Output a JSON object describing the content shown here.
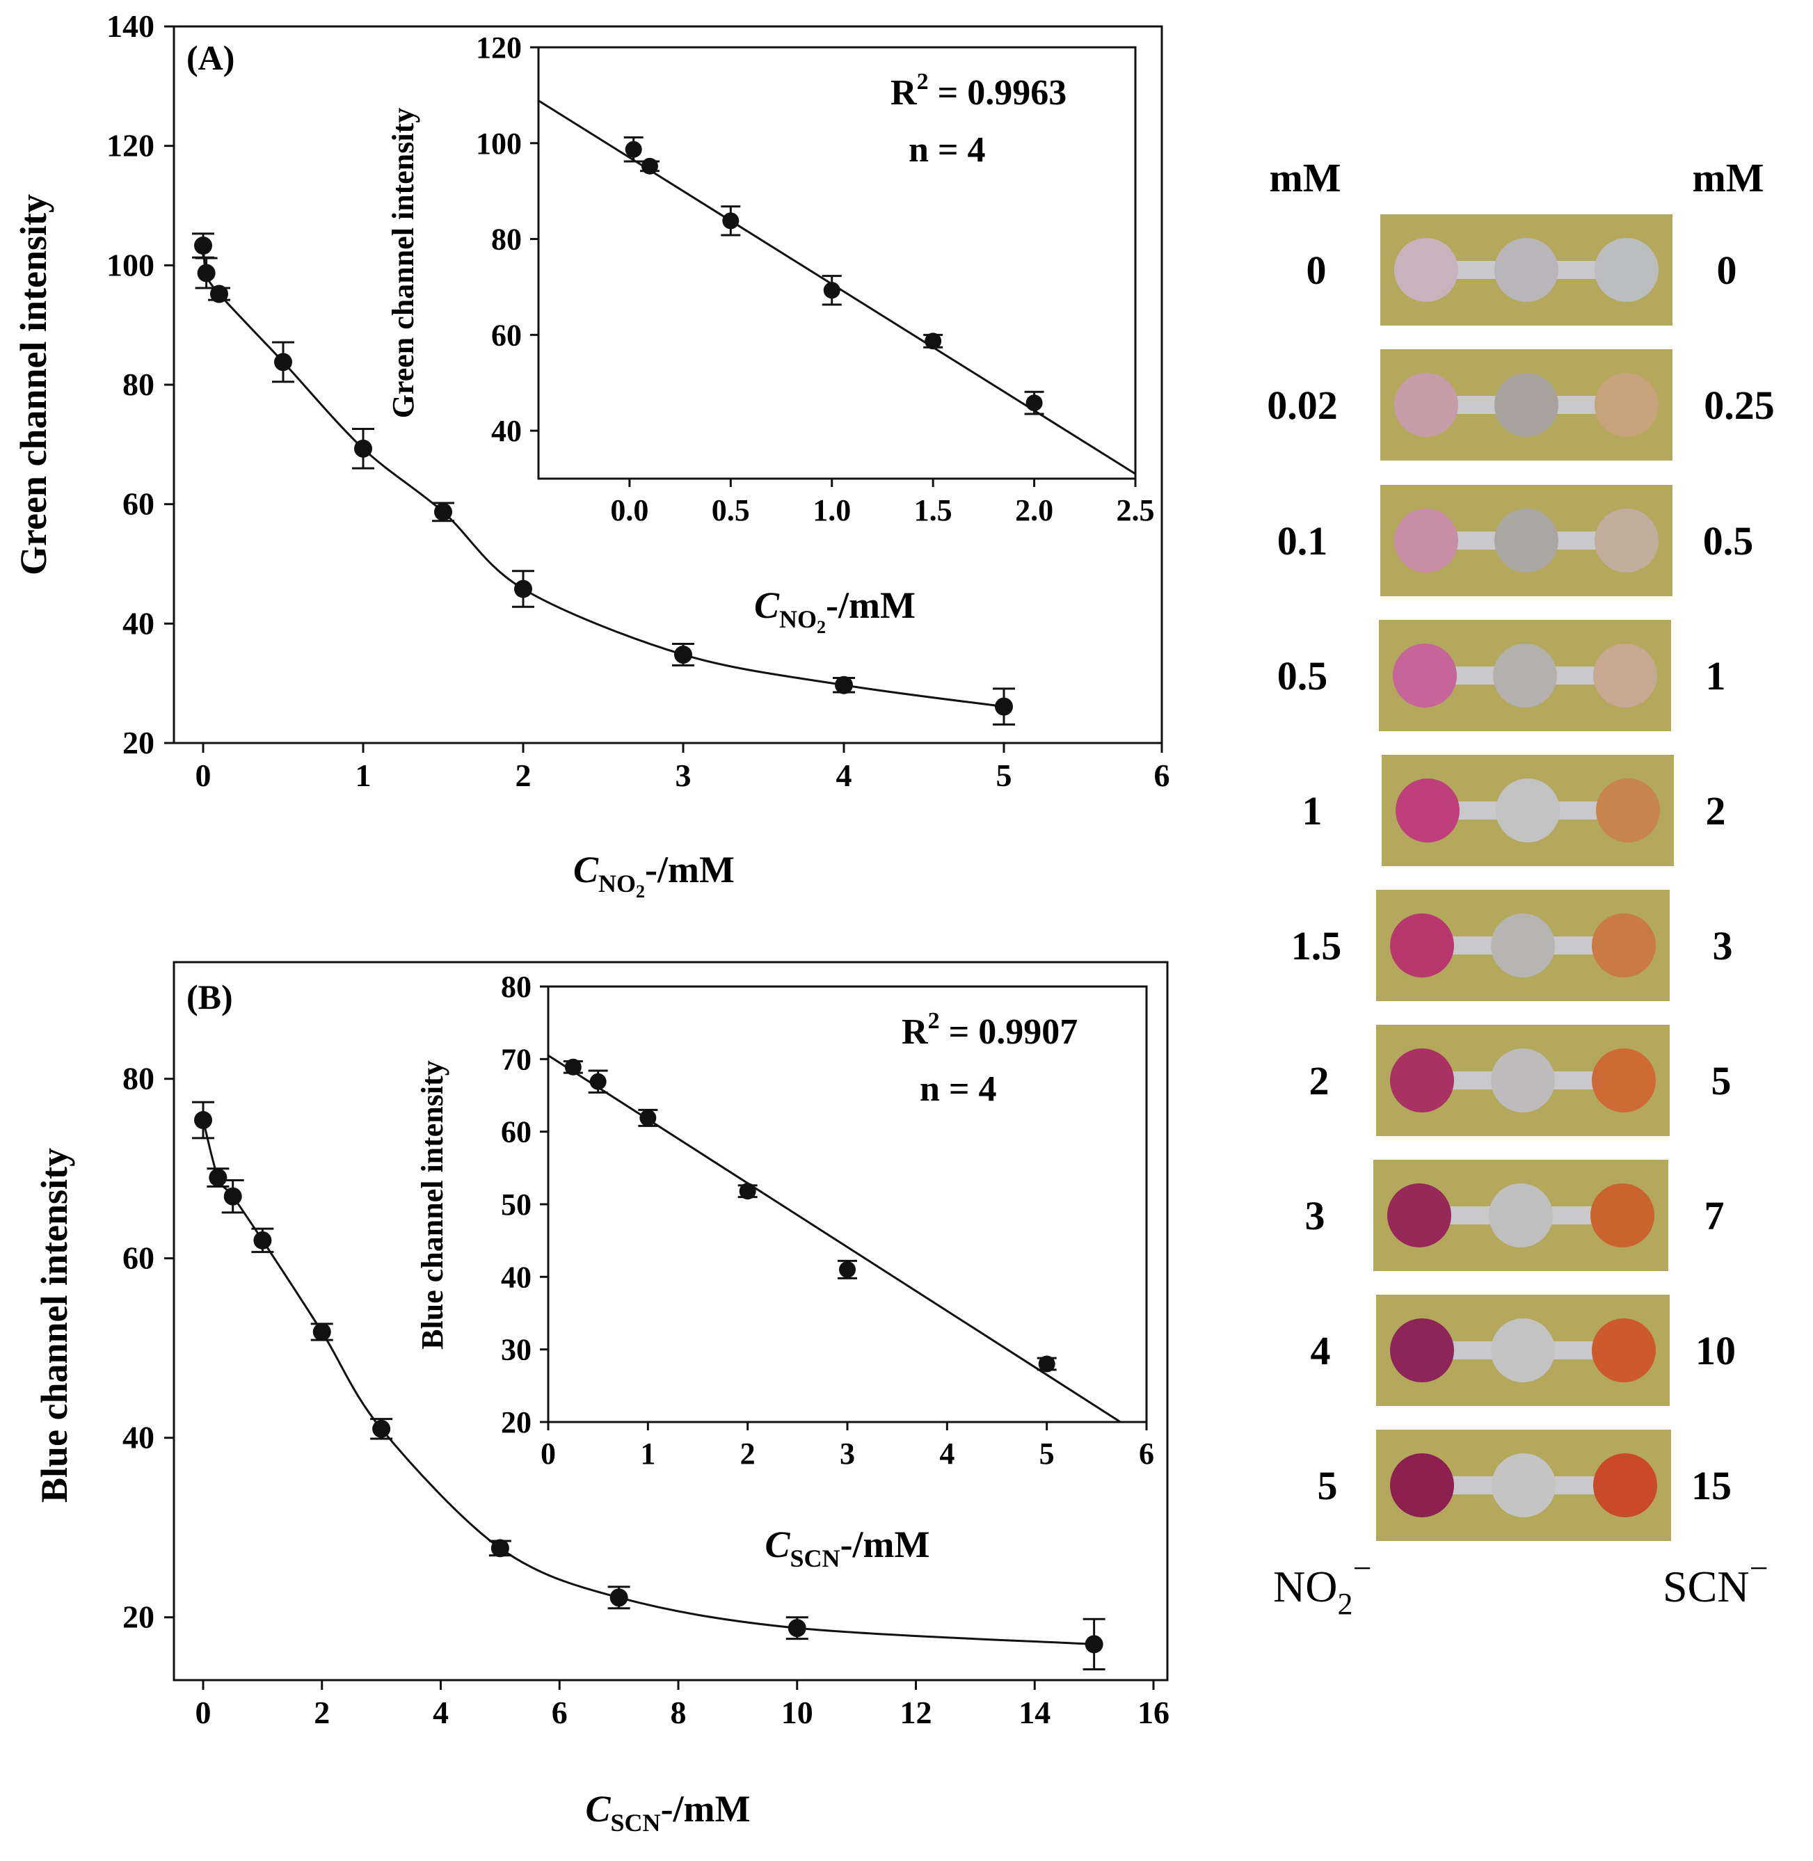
{
  "colors": {
    "strip_bg": "#b3a85c",
    "channel": "#c9c9cc",
    "no2_spot": [
      "#c8b2bb",
      "#c59ca8",
      "#c78ea5",
      "#c6659a",
      "#bf3f7c",
      "#b8376f",
      "#a93164",
      "#96285a",
      "#8d2559",
      "#8d2050"
    ],
    "mid_spot": [
      "#b8b6b8",
      "#a8a29e",
      "#aaa6a2",
      "#b3b0ae",
      "#c3c2c2",
      "#b7b5b4",
      "#bdbbbb",
      "#c0bfbf",
      "#c4c3c3",
      "#c5c4c4"
    ],
    "scn_spot": [
      "#bcbdbf",
      "#c6a37a",
      "#c1ad9c",
      "#c7a890",
      "#c7844e",
      "#c97a45",
      "#cd6a35",
      "#cb6330",
      "#cc5a2d",
      "#c84a28"
    ]
  },
  "strip_panel": {
    "left_unit": "mM",
    "right_unit": "mM",
    "no2_conc": [
      "0",
      "0.02",
      "0.1",
      "0.5",
      "1",
      "1.5",
      "2",
      "3",
      "4",
      "5"
    ],
    "scn_conc": [
      "0",
      "0.25",
      "0.5",
      "1",
      "2",
      "3",
      "5",
      "7",
      "10",
      "15"
    ],
    "left_ion": "NO",
    "left_ion_sub": "2",
    "left_ion_sup": "−",
    "right_ion": "SCN",
    "right_ion_sup": "−"
  },
  "chart_data": [
    {
      "id": "A-main",
      "type": "scatter",
      "panel_label": "(A)",
      "ylabel": "Green channel intensity",
      "xlabel": "C",
      "xlabel_sub": "NO",
      "xlabel_sub2": "2",
      "xlabel_suffix": "-/mM",
      "xlim": [
        0,
        6
      ],
      "ylim": [
        20,
        140
      ],
      "xticks": [
        0,
        1,
        2,
        3,
        4,
        5,
        6
      ],
      "yticks": [
        20,
        40,
        60,
        80,
        100,
        120,
        140
      ],
      "x": [
        0.0,
        0.02,
        0.1,
        0.5,
        1.0,
        1.5,
        2.0,
        3.0,
        4.0,
        5.0
      ],
      "y": [
        103.3,
        98.7,
        95.2,
        83.8,
        69.3,
        58.7,
        45.8,
        34.8,
        29.7,
        26.1
      ],
      "err": [
        2.0,
        2.5,
        1.0,
        3.3,
        3.3,
        1.5,
        3.0,
        1.8,
        1.2,
        3.0
      ],
      "curve": "smooth through points"
    },
    {
      "id": "A-inset",
      "type": "scatter",
      "ylabel": "Green channel intensity",
      "xlabel": "C",
      "xlabel_sub": "NO",
      "xlabel_sub2": "2",
      "xlabel_suffix": "-/mM",
      "xlim": [
        -0.45,
        2.5
      ],
      "ylim": [
        30,
        120
      ],
      "xticks": [
        0.0,
        0.5,
        1.0,
        1.5,
        2.0,
        2.5
      ],
      "xtick_labels": [
        "0.0",
        "0.5",
        "1.0",
        "1.5",
        "2.0",
        "2.5"
      ],
      "yticks": [
        40,
        60,
        80,
        100,
        120
      ],
      "x": [
        0.02,
        0.1,
        0.5,
        1.0,
        1.5,
        2.0
      ],
      "y": [
        98.7,
        95.2,
        83.8,
        69.3,
        58.7,
        45.8
      ],
      "err": [
        2.5,
        1.0,
        3.0,
        3.0,
        1.3,
        2.3
      ],
      "fit": {
        "slope": -26.4,
        "intercept": 97.0
      },
      "r2_prefix": "R",
      "r2_sup": "2",
      "r2_value": " = 0.9963",
      "n_text": "n = 4"
    },
    {
      "id": "B-main",
      "type": "scatter",
      "panel_label": "(B)",
      "ylabel": "Blue channel intensity",
      "xlabel": "C",
      "xlabel_sub": "SCN",
      "xlabel_sub2": "",
      "xlabel_suffix": "-/mM",
      "xlim": [
        0,
        16
      ],
      "ylim": [
        13,
        93
      ],
      "xticks": [
        0,
        2,
        4,
        6,
        8,
        10,
        12,
        14,
        16
      ],
      "yticks": [
        20,
        40,
        60,
        80
      ],
      "x": [
        0,
        0.25,
        0.5,
        1,
        2,
        3,
        5,
        7,
        10,
        15
      ],
      "y": [
        75.4,
        69.0,
        66.9,
        62.0,
        51.8,
        41.0,
        27.7,
        22.2,
        18.8,
        17.0
      ],
      "err": [
        2.0,
        1.0,
        1.8,
        1.3,
        0.9,
        1.1,
        0.8,
        1.2,
        1.2,
        2.8
      ],
      "curve": "smooth through points"
    },
    {
      "id": "B-inset",
      "type": "scatter",
      "ylabel": "Blue channel intensity",
      "xlabel": "C",
      "xlabel_sub": "SCN",
      "xlabel_sub2": "",
      "xlabel_suffix": "-/mM",
      "xlim": [
        0,
        6
      ],
      "ylim": [
        20,
        80
      ],
      "xticks": [
        0,
        1,
        2,
        3,
        4,
        5,
        6
      ],
      "yticks": [
        20,
        30,
        40,
        50,
        60,
        70,
        80
      ],
      "x": [
        0.25,
        0.5,
        1,
        2,
        3,
        5
      ],
      "y": [
        68.9,
        66.9,
        61.9,
        51.8,
        41.0,
        28.0
      ],
      "err": [
        0.8,
        1.5,
        1.1,
        0.8,
        1.2,
        0.8
      ],
      "fit": {
        "slope": -8.8,
        "intercept": 70.5
      },
      "r2_prefix": "R",
      "r2_sup": "2",
      "r2_value": " = 0.9907",
      "n_text": "n = 4"
    }
  ]
}
